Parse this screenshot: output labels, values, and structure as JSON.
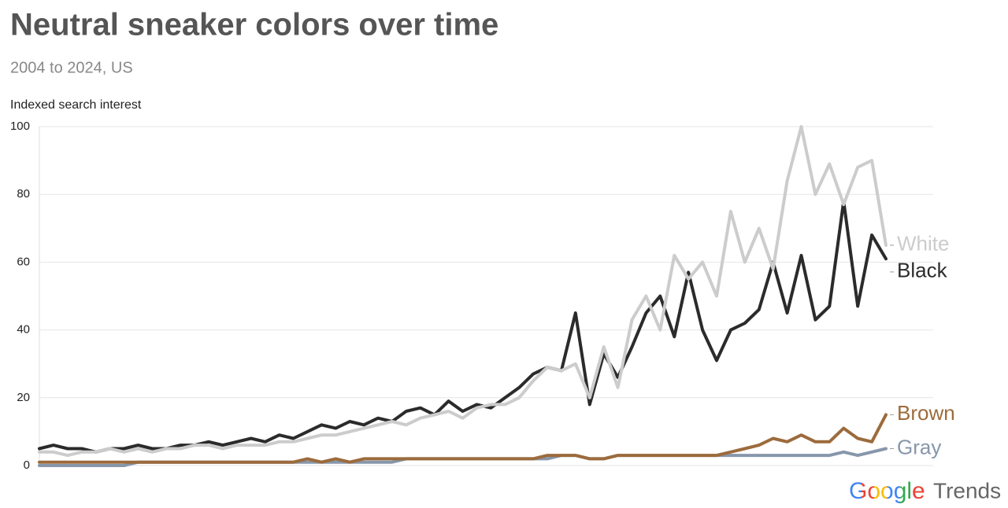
{
  "chart_data": {
    "type": "line",
    "title": "Neutral sneaker colors over time",
    "subtitle": "2004 to 2024, US",
    "y_label": "Indexed search interest",
    "logo": "Google",
    "logo_colors": [
      "#4285f4",
      "#ea4335",
      "#fbbc05",
      "#4285f4",
      "#34a853",
      "#ea4335"
    ],
    "product": "Trends",
    "grid": true,
    "ylim": [
      0,
      100
    ],
    "yticks": [
      0,
      20,
      40,
      60,
      80,
      100
    ],
    "categories": [
      null,
      null,
      null,
      null,
      null,
      null,
      null,
      null,
      null,
      null,
      null,
      null,
      null,
      null,
      null,
      null,
      null,
      null,
      null,
      null,
      null,
      null,
      null,
      null,
      null,
      null,
      null,
      null,
      null,
      null,
      null,
      null,
      null,
      null,
      null,
      null,
      null,
      null,
      null,
      null,
      null,
      null,
      null,
      null,
      null,
      null,
      null,
      null,
      null,
      null,
      null,
      null,
      null,
      null,
      null,
      null,
      null,
      null,
      null,
      null,
      null
    ],
    "series": [
      {
        "name": "White",
        "color": "#cccccc",
        "values": [
          4,
          4,
          3,
          4,
          4,
          5,
          4,
          5,
          4,
          5,
          5,
          6,
          6,
          5,
          6,
          6,
          6,
          7,
          7,
          8,
          9,
          9,
          10,
          11,
          12,
          13,
          12,
          14,
          15,
          16,
          14,
          17,
          18,
          18,
          20,
          25,
          29,
          28,
          30,
          20,
          35,
          23,
          43,
          50,
          40,
          62,
          55,
          60,
          50,
          75,
          60,
          70,
          58,
          84,
          100,
          80,
          89,
          77,
          88,
          90,
          65
        ]
      },
      {
        "name": "Black",
        "color": "#2b2b2b",
        "values": [
          5,
          6,
          5,
          5,
          4,
          5,
          5,
          6,
          5,
          5,
          6,
          6,
          7,
          6,
          7,
          8,
          7,
          9,
          8,
          10,
          12,
          11,
          13,
          12,
          14,
          13,
          16,
          17,
          15,
          19,
          16,
          18,
          17,
          20,
          23,
          27,
          29,
          28,
          45,
          18,
          33,
          26,
          35,
          45,
          50,
          38,
          57,
          40,
          31,
          40,
          42,
          46,
          60,
          45,
          62,
          43,
          47,
          78,
          47,
          68,
          61
        ]
      },
      {
        "name": "Brown",
        "color": "#9c6b3c",
        "values": [
          1,
          1,
          1,
          1,
          1,
          1,
          1,
          1,
          1,
          1,
          1,
          1,
          1,
          1,
          1,
          1,
          1,
          1,
          1,
          2,
          1,
          2,
          1,
          2,
          2,
          2,
          2,
          2,
          2,
          2,
          2,
          2,
          2,
          2,
          2,
          2,
          3,
          3,
          3,
          2,
          2,
          3,
          3,
          3,
          3,
          3,
          3,
          3,
          3,
          4,
          5,
          6,
          8,
          7,
          9,
          7,
          7,
          11,
          8,
          7,
          15
        ]
      },
      {
        "name": "Gray",
        "color": "#8797ab",
        "values": [
          0,
          0,
          0,
          0,
          0,
          0,
          0,
          1,
          1,
          1,
          1,
          1,
          1,
          1,
          1,
          1,
          1,
          1,
          1,
          1,
          1,
          1,
          1,
          1,
          1,
          1,
          2,
          2,
          2,
          2,
          2,
          2,
          2,
          2,
          2,
          2,
          2,
          3,
          3,
          2,
          2,
          3,
          3,
          3,
          3,
          3,
          3,
          3,
          3,
          3,
          3,
          3,
          3,
          3,
          3,
          3,
          3,
          4,
          3,
          4,
          5
        ]
      }
    ]
  }
}
